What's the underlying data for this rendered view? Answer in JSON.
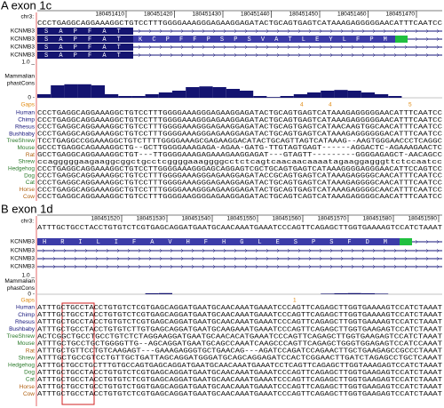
{
  "panels": [
    {
      "title": "A exon 1c",
      "chrom": "chr3:",
      "ruler": [
        180451410,
        180451420,
        180451430,
        180451440,
        180451450,
        180451460,
        180451470
      ],
      "reference": "CCCTGAGGCAGGAAAGGCTGTCCTTTGGGGAAAGGGAGAAGGAGATACTGCAGTGAGTCATAAAGAGGGGGAACATTTCAATCC",
      "gene_tracks": [
        "KCNMB3",
        "KCNMB3",
        "KCNMB3",
        "KCNMB3"
      ],
      "amino_acids_1": [
        "S",
        "A",
        "P",
        "F",
        "A",
        "T"
      ],
      "amino_acids_2": [
        "K",
        "C",
        "P",
        "F",
        "F",
        "P",
        "S",
        "P",
        "S",
        "V",
        "A",
        "T",
        "L",
        "E",
        "Y",
        "L",
        "F",
        "P",
        "M"
      ],
      "scale_max": "1.0 _",
      "track_label": [
        "Mammalian",
        "phastCons"
      ],
      "scale_min": "0 -",
      "gaps_label": "Gaps",
      "gap_marks": [
        "4",
        "4",
        "5"
      ],
      "phastcons": [
        0.1,
        0.35,
        0.38,
        0.38,
        0.35,
        0.1,
        0.05,
        0.05,
        0.1,
        0.15,
        0.2,
        0.3,
        0.32,
        0.3,
        0.25,
        0.2,
        0.05,
        0.02,
        0.05,
        0.1,
        0.15,
        0.2,
        0.22,
        0.2,
        0.15,
        0.1,
        0.05,
        0,
        0,
        0
      ],
      "species": [
        {
          "name": "Human",
          "seq": "CCCTGAGGCAGGAAAGGCTGTCCTTTGGGGAAAGGGAGAAGGAGATACTGCAGTGAGTCATAAAGAGGGGGAACATTTCAATCC"
        },
        {
          "name": "Chimp",
          "seq": "CCCTGAGGCAGGAAAGGCTGTCCTTTGGGGAAAGGGAGAAGGAGATACTGCAGTGAGTCATAAAGAGGGGGAACATTTCAATCC"
        },
        {
          "name": "Rhesus",
          "seq": "CCCTGAGGCAGGAAAGGCTGTCCTTTGGGGAAAGGGAGAAGGAGATACTGCAGTGAGTCATAACAAGTGGCAACATTTCAATCC"
        },
        {
          "name": "Bushbaby",
          "seq": "CCCTGAGGCAGGAAAGGCTGTCCTTTGGGGAAAGGGAGAAGGAGATACTGCAGTGAGTCATAAAGAGGGGGGACATTTCAATCC"
        },
        {
          "name": "TreeShrew",
          "seq": "TCCTGAGGCCGGAAAGGCTGTCTTTTGGGGAAAGCGAGAAGGACATACTGCAGTTAGTCATAAAG--AAGTGGGAACCCTCAGGC"
        },
        {
          "name": "Mouse",
          "seq": "GCCCTGAGGCAGAAAGGCTG--GCTTGGGGAAAGAGA-AGAA-GATG-TTGTAGTGAGT------AGGACTC-AGAAAGAACTC"
        },
        {
          "name": "Rat",
          "seq": "GCCTGAGGCAGGAAAGGCTGT---TTGGGGAAAGAGAAAGAAGGAGAT---GTAGTT---------GGGGAGAGCT-AACAGCC"
        },
        {
          "name": "Shrew",
          "seq": "ccagggggaagaaggcggctgcctcggggaaaggggcctctcagtcaacaacaaaatagaaggagggttctccaatcc"
        },
        {
          "name": "Hedgehog",
          "seq": "CCCTGAGGCAGGAAAGGCTGTCCTTGGGGAAAGGGAGCAGGAGTCGCTGCAGTGAGTCATAAAGGGGAGGGAACATTCCAGTCC"
        },
        {
          "name": "Dog",
          "seq": "CCCTGAGGCAGGAAAGGCTGTCCTTTGGGGAAAGGGAGAAGGAGATACCGCAGTGAGTCATAAAGAGGGGCAACATTTCAATCC"
        },
        {
          "name": "Cat",
          "seq": "CCCTGAGGCAGGAAAGGCTGTCCTTTGGGGAAAGGGAGAAGGAGATACTGCAGTGAGTCATAAAGAGGGGCAACATTTCAATCC"
        },
        {
          "name": "Horse",
          "seq": "CCCTGAGGCAGGAAAGGCTGTCCTTTGGGGAAAGGGAGAAGGAGATACTGCAGTGAGTCATAAAGAGGGGCAACATTTCAATCC"
        },
        {
          "name": "Cow",
          "seq": "CCCTGAGGCAGGAAAGGCTGTCCTTTGGGGAAGGGGAGAAGGAGATACTGCAGTCAGTCATAAAGAGGGGCAACATTTCAATCC"
        }
      ]
    },
    {
      "title": "B exon 1d",
      "chrom": "chr3:",
      "ruler": [
        180451520,
        180451530,
        180451540,
        180451550,
        180451560,
        180451570,
        180451580,
        180451590
      ],
      "reference": "ATTTGCTGCCTACCTGTGTCTCGTGAGCAGGATGAATGCAACAAATGAAATCCCAGTTCAGAGCTTGGTGAAAAGTCCATCTAAAT",
      "gene_tracks": [
        "KCNMB3",
        "KCNMB3",
        "KCNMB3",
        "KCNMB3"
      ],
      "amino_acids_1": [],
      "amino_acids_2": [
        "H",
        "R",
        "I",
        "L",
        "I",
        "F",
        "A",
        "V",
        "H",
        "F",
        "H",
        "G",
        "L",
        "E",
        "S",
        "P",
        "S",
        "F",
        "D",
        "M"
      ],
      "scale_max": "1.0 _",
      "track_label": [
        "Mammalian",
        "phastCons"
      ],
      "scale_min": "0 -",
      "gaps_label": "Gaps",
      "gap_marks": [
        "1"
      ],
      "phastcons": [
        0,
        0,
        0,
        0,
        0,
        0,
        0,
        0,
        0.05,
        0.06,
        0,
        0,
        0,
        0,
        0,
        0,
        0,
        0,
        0,
        0,
        0,
        0.03,
        0.05,
        0.06,
        0.05,
        0.03,
        0,
        0,
        0,
        0
      ],
      "species": [
        {
          "name": "Human",
          "seq": "ATTTGCTGCCTACCTGTGTCTCGTGAGCAGGATGAATGCAACAAATGAAATCCCAGTTCAGAGCTTGGTGAAAAGTCCATCTAAAT"
        },
        {
          "name": "Chimp",
          "seq": "ATTTGCTGCCTACCTGTGTCTCGTGAGCAGGATGAATGCAACAAATGAAATCCCAGTTCAGAGCTTGGTGAAAAGTCCATCTAAAT"
        },
        {
          "name": "Rhesus",
          "seq": "ATTTGCTGCCTACCTGTGTCTCGTGAGCAGGATGAATGCAACAAATGAAATCCCAGTTCAGAGCTTGGTGAAAAGTCCATCTAAAT"
        },
        {
          "name": "Bushbaby",
          "seq": "ATTTGCTGCCTACCTGTGTCTTGTGAGCAGGATGAATGCAAGAAATGAAATCCCAGTTCAGAGCTTGGTGAAGAGTCCATCTAAAT"
        },
        {
          "name": "TreeShrew",
          "seq": "ACTCGGCTGCCTGCCTGTCTCTAGGAAGGATGAATGCAACACATGAAATCCCAGTTCAGAGCTTGGTGAAGAGTCCATCTAAAT"
        },
        {
          "name": "Mouse",
          "seq": "ATTTGCTGCCTGCTGGGGTTG--AGCAGGATGAATGCAGCCAAATCAAGCCCAGTTCAGAGCTGGGTGGAGAGTCCATCCAAAT"
        },
        {
          "name": "Rat",
          "seq": "ATTTGCTGTTCCTGTCAAGAGT---GAAAGAGGGTGCTGAACAG---AGATCCAGATCCAGAACTTGCTGAAGAGCCGCCCTAAAT"
        },
        {
          "name": "Shrew",
          "seq": "ATTTGCTGCCGTCCTGTTGCTGATTAGCAGGATGGGATGCAGCAGGAGATCCACTCGGAACTTGATCTAGAGCCTGCTCAAAT"
        },
        {
          "name": "Hedgehog",
          "seq": "ATTTGCTGCCTGCTTTGTGCCAGTGAGCAGGATGAATGCAACAAATGAAATCCTCAGTTCAGAGCTTGGTAAAGAGTCCATCTAAAT"
        },
        {
          "name": "Dog",
          "seq": "ATTTGCTGCCTACCTGTGTCTCGTGAGCAGGATGAATGCAACAAATGAAATCCCAGTTCAGAGCTTGGTGAAGAGTCCATCTAAAT"
        },
        {
          "name": "Cat",
          "seq": "ATTTGCTGCCTACCTGTGTCTCGTGAGCAGGATGAATGCAACAAATGAAATCCCAGTTCAGAGCTTGGTGAAGAGTCCATCTAAAT"
        },
        {
          "name": "Horse",
          "seq": "ATTTGCTGCCTGCCTGTGTCTGGTGAGCAGGATGAATGCAACAAATGAAATCCCAGTTCAGAGCTTGGTGAAGAGTCCATCTAAAT"
        },
        {
          "name": "Cow",
          "seq": "ATTTGCTGCCTACCTGTGTCTCGTGAGCAGGATGAATGCAACAAATGAAATCCCAGTTCAGAGCTTGGTGAAGAGTCCATCTAAAT"
        }
      ]
    }
  ]
}
